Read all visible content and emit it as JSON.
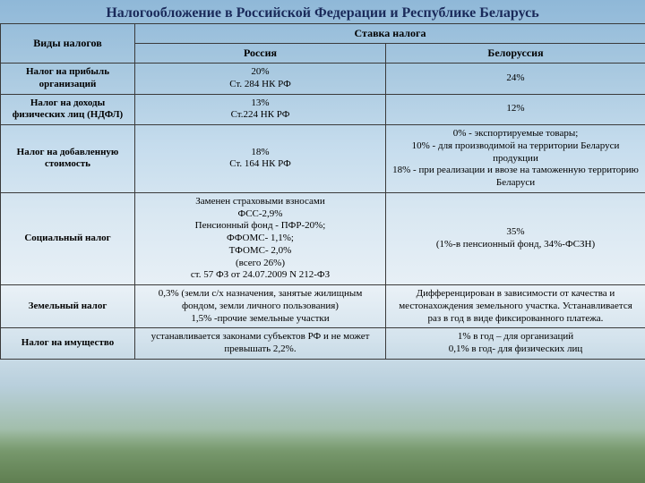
{
  "title": "Налогообложение в Российской Федерации и Республике Беларусь",
  "header": {
    "col1": "Виды налогов",
    "col_rate": "Ставка налога",
    "col_ru": "Россия",
    "col_by": "Белоруссия"
  },
  "rows": [
    {
      "type": "Налог на прибыль организаций",
      "ru": "20%\nСт. 284 НК РФ",
      "by": "24%"
    },
    {
      "type": "Налог на доходы физических лиц (НДФЛ)",
      "ru": "13%\nСт.224 НК РФ",
      "by": "12%"
    },
    {
      "type": "Налог на добавленную стоимость",
      "ru": "18%\nСт. 164 НК РФ",
      "by": "0% - экспортируемые товары;\n10% - для производимой на территории Беларуси продукции\n18% - при реализации и ввозе на таможенную территорию Беларуси"
    },
    {
      "type": "Социальный налог",
      "ru": "Заменен страховыми взносами\nФСС-2,9%\nПенсионный фонд - ПФР-20%;\nФФОМС- 1,1%;\nТФОМС- 2,0%\n(всего 26%)\nст. 57 ФЗ от 24.07.2009 N 212-ФЗ",
      "by": "35%\n(1%-в пенсионный фонд, 34%-ФСЗН)"
    },
    {
      "type": "Земельный налог",
      "ru": "0,3% (земли с/х назначения, занятые жилищным фондом, земли личного пользования)\n1,5% -прочие земельные участки",
      "by": "Дифференцирован в зависимости от качества и местонахождения земельного участка. Устанавливается раз в год в виде фиксированного платежа."
    },
    {
      "type": "Налог на имущество",
      "ru": "устанавливается законами субъектов РФ и не может превышать 2,2%.",
      "by": "1% в год – для организаций\n0,1% в год- для физических лиц"
    }
  ]
}
